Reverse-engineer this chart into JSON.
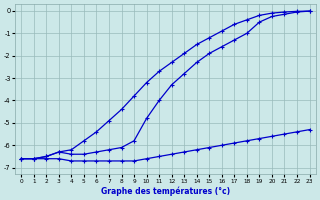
{
  "title": "",
  "xlabel": "Graphe des températures (°c)",
  "ylabel": "",
  "bg_color": "#cce8e8",
  "grid_color": "#99bbbb",
  "line_color": "#0000cc",
  "xlim": [
    -0.5,
    23.5
  ],
  "ylim": [
    -7.3,
    0.3
  ],
  "xticks": [
    0,
    1,
    2,
    3,
    4,
    5,
    6,
    7,
    8,
    9,
    10,
    11,
    12,
    13,
    14,
    15,
    16,
    17,
    18,
    19,
    20,
    21,
    22,
    23
  ],
  "yticks": [
    0,
    -1,
    -2,
    -3,
    -4,
    -5,
    -6,
    -7
  ],
  "line1_x": [
    0,
    1,
    2,
    3,
    4,
    5,
    6,
    7,
    8,
    9,
    10,
    11,
    12,
    13,
    14,
    15,
    16,
    17,
    18,
    19,
    20,
    21,
    22,
    23
  ],
  "line1_y": [
    -6.6,
    -6.6,
    -6.5,
    -6.3,
    -6.2,
    -5.8,
    -5.4,
    -4.9,
    -4.4,
    -3.8,
    -3.2,
    -2.7,
    -2.3,
    -1.9,
    -1.5,
    -1.2,
    -0.9,
    -0.6,
    -0.4,
    -0.2,
    -0.1,
    -0.05,
    -0.02,
    -0.01
  ],
  "line2_x": [
    0,
    1,
    2,
    3,
    4,
    5,
    6,
    7,
    8,
    9,
    10,
    11,
    12,
    13,
    14,
    15,
    16,
    17,
    18,
    19,
    20,
    21,
    22,
    23
  ],
  "line2_y": [
    -6.6,
    -6.6,
    -6.5,
    -6.3,
    -6.4,
    -6.4,
    -6.3,
    -6.2,
    -6.1,
    -5.8,
    -4.8,
    -4.0,
    -3.3,
    -2.8,
    -2.3,
    -1.9,
    -1.6,
    -1.3,
    -1.0,
    -0.5,
    -0.25,
    -0.15,
    -0.05,
    -0.01
  ],
  "line3_x": [
    0,
    1,
    2,
    3,
    4,
    5,
    6,
    7,
    8,
    9,
    10,
    11,
    12,
    13,
    14,
    15,
    16,
    17,
    18,
    19,
    20,
    21,
    22,
    23
  ],
  "line3_y": [
    -6.6,
    -6.6,
    -6.6,
    -6.6,
    -6.7,
    -6.7,
    -6.7,
    -6.7,
    -6.7,
    -6.7,
    -6.6,
    -6.5,
    -6.4,
    -6.3,
    -6.2,
    -6.1,
    -6.0,
    -5.9,
    -5.8,
    -5.7,
    -5.6,
    -5.5,
    -5.4,
    -5.3
  ]
}
